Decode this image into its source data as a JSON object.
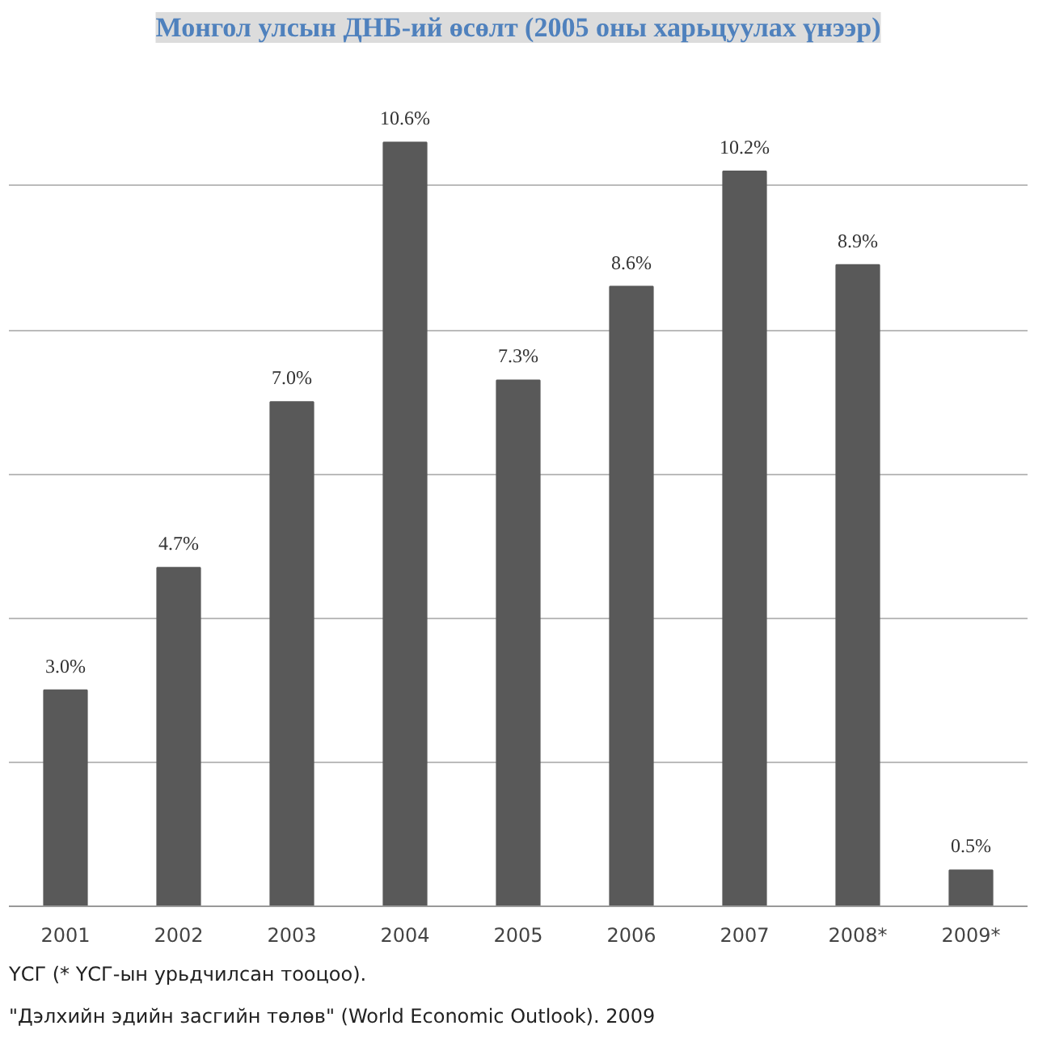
{
  "chart_data": {
    "type": "bar",
    "title": "Монгол улсын ДНБ-ий өсөлт (2005 оны харьцуулах үнээр)",
    "categories": [
      "2001",
      "2002",
      "2003",
      "2004",
      "2005",
      "2006",
      "2007",
      "2008*",
      "2009*"
    ],
    "values": [
      3.0,
      4.7,
      7.0,
      10.6,
      7.3,
      8.6,
      10.2,
      8.9,
      0.5
    ],
    "value_labels": [
      "3.0%",
      "4.7%",
      "7.0%",
      "10.6%",
      "7.3%",
      "8.6%",
      "10.2%",
      "8.9%",
      "0.5%"
    ],
    "color": "#595959",
    "yticks": [
      {
        "value": 0,
        "label": null
      },
      {
        "value": 2,
        "label": null
      },
      {
        "value": 4,
        "label": null
      },
      {
        "value": 6,
        "label": null
      },
      {
        "value": 8,
        "label": null
      },
      {
        "value": 10,
        "label": null
      }
    ],
    "tick_labels": "x",
    "grid": "y",
    "annotations": [
      "ҮСГ (* ҮСГ-ын урьдчилсан тооцоо).",
      "\"Дэлхийн эдийн засгийн төлөв\" (World Economic Outlook). 2009"
    ]
  }
}
